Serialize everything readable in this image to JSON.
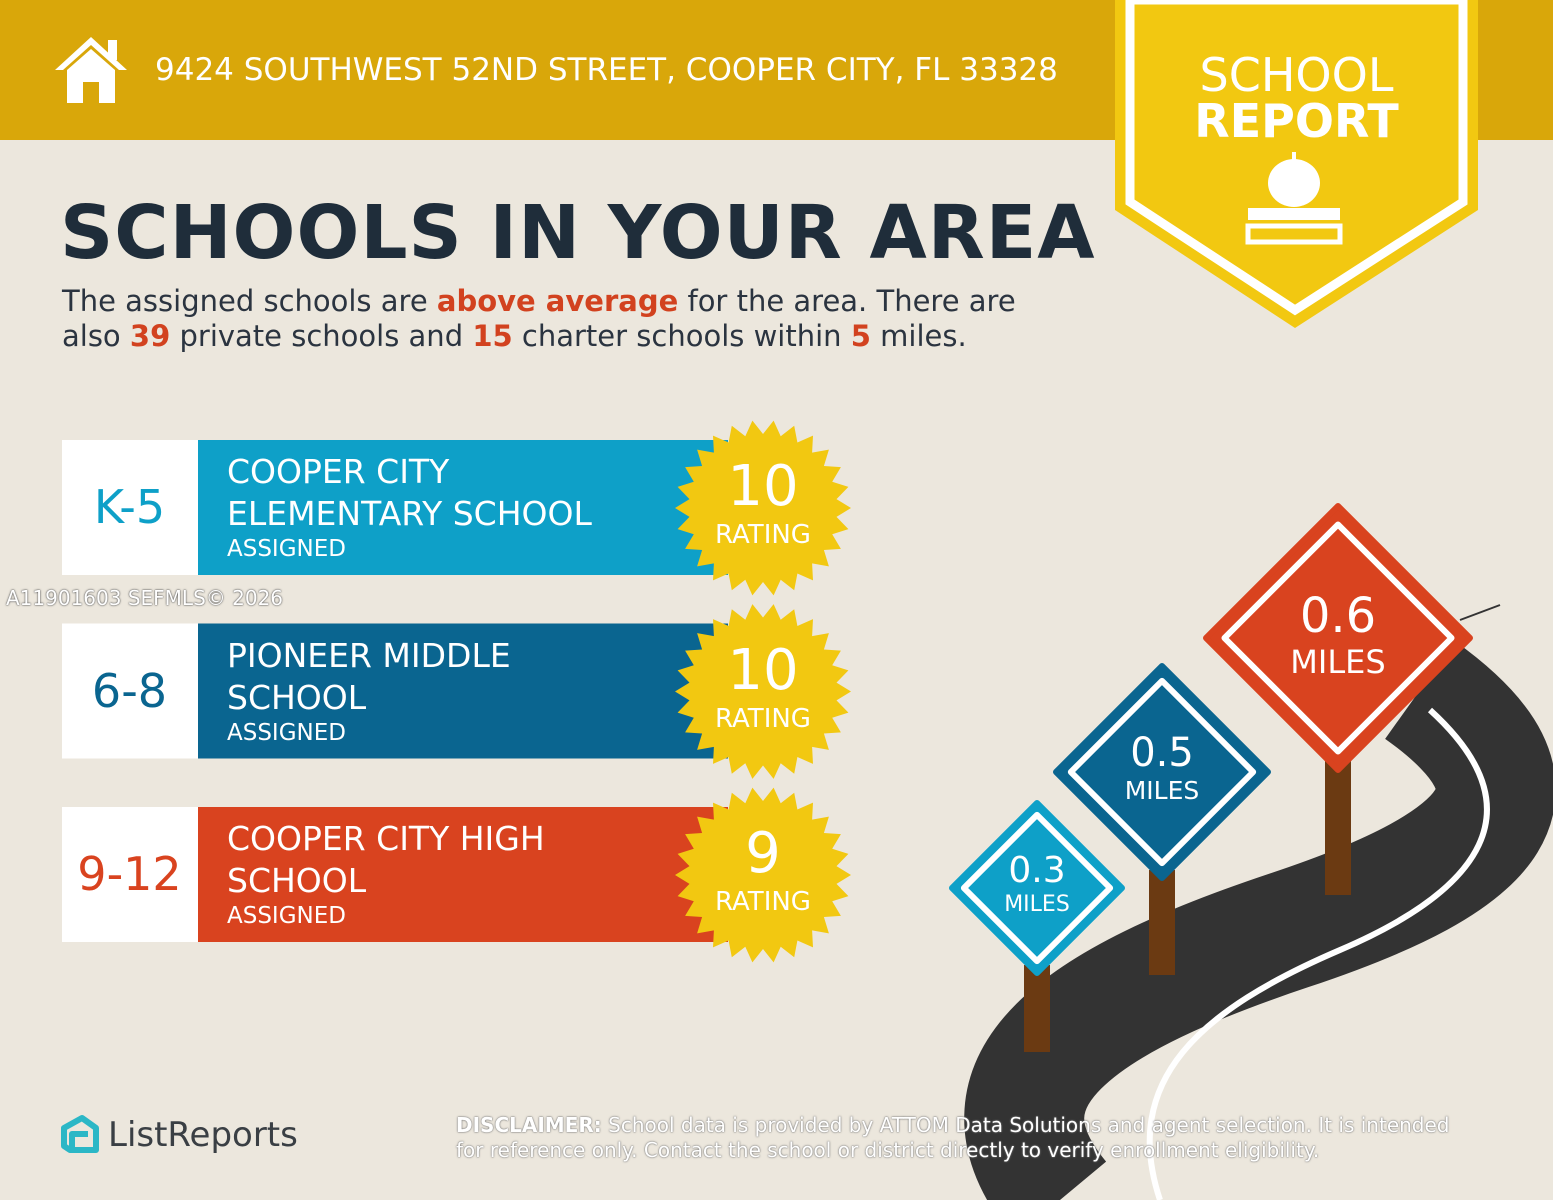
{
  "header": {
    "address": "9424 SOUTHWEST 52ND STREET, COOPER CITY, FL 33328"
  },
  "badge": {
    "line1": "SCHOOL",
    "line2": "REPORT"
  },
  "title": "SCHOOLS IN YOUR AREA",
  "intro": [
    [
      "The assigned schools are ",
      "above average",
      " for the area. There are"
    ],
    [
      "also ",
      "39",
      " private schools and ",
      "15",
      " charter schools within ",
      "5",
      " miles."
    ]
  ],
  "schools": [
    {
      "grade": "K-5",
      "name_lines": [
        "COOPER CITY",
        "ELEMENTARY SCHOOL"
      ],
      "status": "ASSIGNED",
      "rating": 10,
      "rating_label": "RATING"
    },
    {
      "grade": "6-8",
      "name_lines": [
        "PIONEER MIDDLE",
        "SCHOOL"
      ],
      "status": "ASSIGNED",
      "rating": 10,
      "rating_label": "RATING"
    },
    {
      "grade": "9-12",
      "name_lines": [
        "COOPER CITY HIGH",
        "SCHOOL"
      ],
      "status": "ASSIGNED",
      "rating": 9,
      "rating_label": "RATING"
    }
  ],
  "distances": [
    {
      "value": 0.3,
      "unit": "MILES"
    },
    {
      "value": 0.5,
      "unit": "MILES"
    },
    {
      "value": 0.6,
      "unit": "MILES"
    }
  ],
  "watermark": "A11901603  SEFMLS© 2026",
  "brand": "ListReports",
  "disclaimer": {
    "label": "DISCLAIMER:",
    "text": "School data is provided by ATTOM Data Solutions and agent selection. It is intended for reference only. Contact the school or district directly to verify enrollment eligibility."
  }
}
